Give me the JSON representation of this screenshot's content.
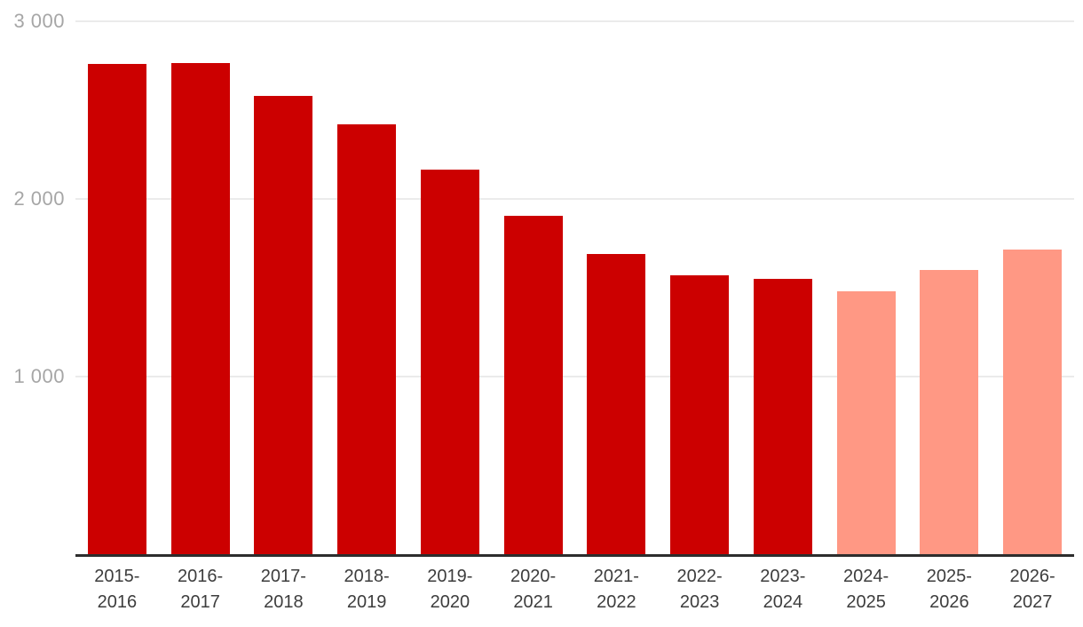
{
  "chart_data": {
    "type": "bar",
    "title": "",
    "xlabel": "",
    "ylabel": "",
    "ylim": [
      0,
      3000
    ],
    "grid": true,
    "legend_position": "none",
    "categories": [
      [
        "2015-",
        "2016"
      ],
      [
        "2016-",
        "2017"
      ],
      [
        "2017-",
        "2018"
      ],
      [
        "2018-",
        "2019"
      ],
      [
        "2019-",
        "2020"
      ],
      [
        "2020-",
        "2021"
      ],
      [
        "2021-",
        "2022"
      ],
      [
        "2022-",
        "2023"
      ],
      [
        "2023-",
        "2024"
      ],
      [
        "2024-",
        "2025"
      ],
      [
        "2025-",
        "2026"
      ],
      [
        "2026-",
        "2027"
      ]
    ],
    "values": [
      2760,
      2765,
      2580,
      2420,
      2165,
      1905,
      1690,
      1570,
      1550,
      1480,
      1600,
      1715
    ],
    "bar_styles": [
      "actual",
      "actual",
      "actual",
      "actual",
      "actual",
      "actual",
      "actual",
      "actual",
      "actual",
      "forecast",
      "forecast",
      "forecast"
    ],
    "yticks": [
      {
        "value": 1000,
        "label": "1 000"
      },
      {
        "value": 2000,
        "label": "2 000"
      },
      {
        "value": 3000,
        "label": "3 000"
      }
    ],
    "colors": {
      "actual": "#cc0000",
      "forecast": "#ff9884",
      "gridline": "#ebebeb",
      "axis": "#2d2d2d",
      "ylabel": "#a6a6a6",
      "xlabel": "#3d3d3d"
    }
  }
}
